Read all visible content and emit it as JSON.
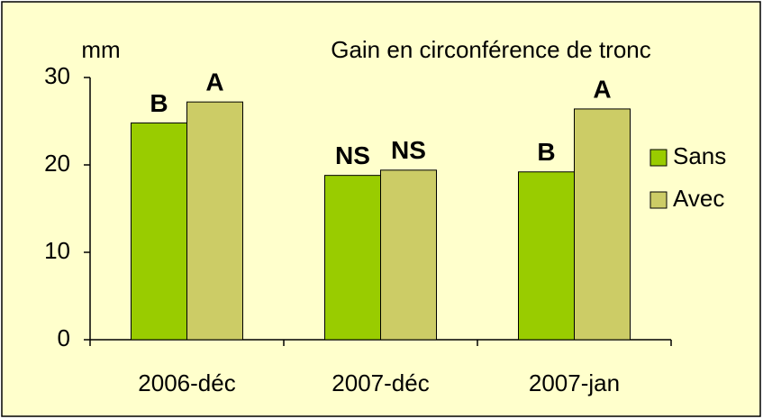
{
  "chart_data": {
    "type": "bar",
    "title": "Gain en circonférence de tronc",
    "y_label": "mm",
    "categories": [
      "2006-déc",
      "2007-déc",
      "2007-jan"
    ],
    "series": [
      {
        "name": "Sans",
        "color": "#99cc00",
        "values": [
          24.8,
          18.8,
          19.2
        ],
        "letters": [
          "B",
          "NS",
          "B"
        ]
      },
      {
        "name": "Avec",
        "color": "#cccc66",
        "values": [
          27.2,
          19.4,
          26.4
        ],
        "letters": [
          "A",
          "NS",
          "A"
        ]
      }
    ],
    "ylim": [
      0,
      30
    ],
    "yticks": [
      0,
      10,
      20,
      30
    ],
    "legend": "right",
    "grid": false
  }
}
